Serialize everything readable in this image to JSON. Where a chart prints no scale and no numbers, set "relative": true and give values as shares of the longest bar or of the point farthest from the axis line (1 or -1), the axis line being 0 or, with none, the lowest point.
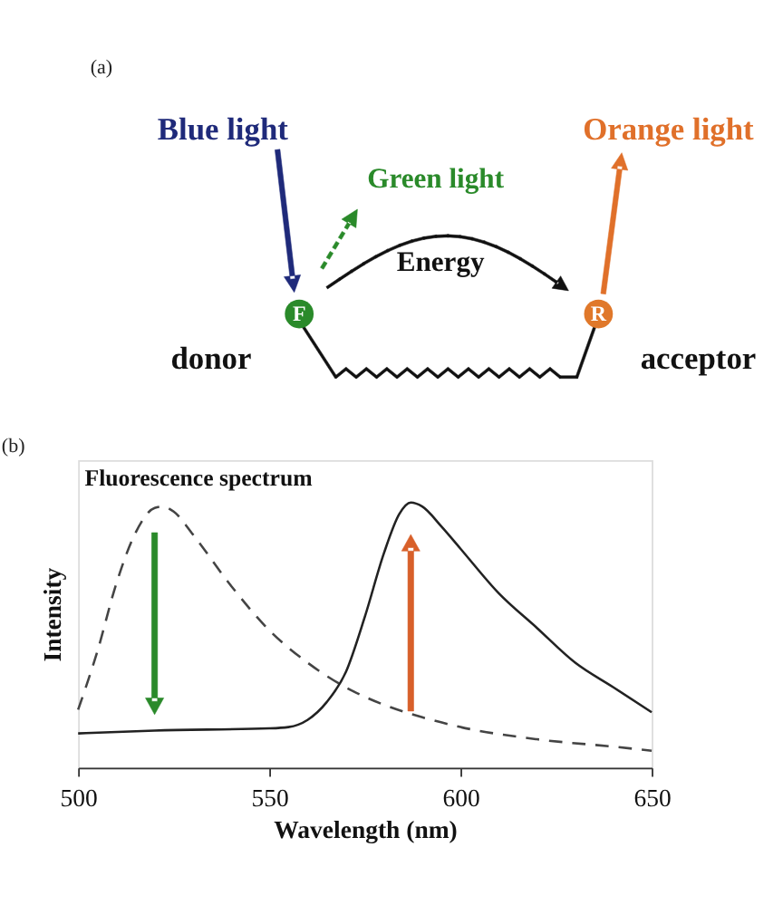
{
  "chart_data": [
    {
      "type": "other",
      "annotations": [
        "(a)",
        "Blue light",
        "Green light",
        "Energy",
        "Orange light",
        "F",
        "R",
        "donor",
        "acceptor"
      ]
    },
    {
      "type": "line",
      "title": "Fluorescence spectrum",
      "xlabel": "Wavelength (nm)",
      "ylabel": "Intensity",
      "relative": true,
      "xlim": [
        500,
        650
      ],
      "xticks": [
        500,
        550,
        600,
        650
      ],
      "grid": false,
      "marker": "none",
      "annotations": [
        "(b)"
      ],
      "series": [
        {
          "color": "#444444",
          "line_style": "dashed",
          "x": [
            500,
            505,
            510,
            515,
            520,
            522,
            525,
            530,
            540,
            550,
            560,
            570,
            580,
            590,
            600,
            620,
            640,
            650
          ],
          "values": [
            0.219,
            0.437,
            0.695,
            0.886,
            0.98,
            0.985,
            0.966,
            0.88,
            0.686,
            0.518,
            0.396,
            0.303,
            0.237,
            0.19,
            0.153,
            0.107,
            0.079,
            0.064
          ]
        },
        {
          "color": "#222222",
          "line_style": "solid",
          "x": [
            500,
            520,
            550,
            555,
            560,
            565,
            570,
            575,
            580,
            584,
            587,
            590,
            595,
            600,
            610,
            620,
            630,
            640,
            650
          ],
          "values": [
            0.129,
            0.14,
            0.148,
            0.153,
            0.18,
            0.247,
            0.36,
            0.57,
            0.81,
            0.957,
            1,
            0.985,
            0.91,
            0.826,
            0.658,
            0.527,
            0.396,
            0.303,
            0.209
          ]
        }
      ]
    }
  ]
}
